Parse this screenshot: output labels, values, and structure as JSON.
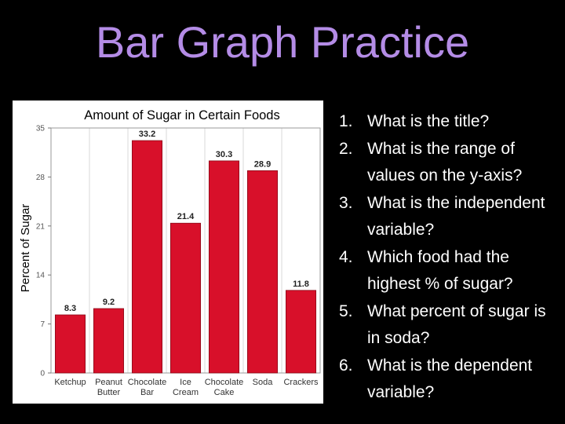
{
  "slide": {
    "title": "Bar Graph Practice"
  },
  "questions": [
    {
      "num": "1.",
      "text": "What is the title?"
    },
    {
      "num": "2.",
      "text": "What is the range of values on the y-axis?"
    },
    {
      "num": "3.",
      "text": "What is the independent variable?"
    },
    {
      "num": "4.",
      "text": "Which food had the highest % of sugar?"
    },
    {
      "num": "5.",
      "text": "What percent of sugar is in soda?"
    },
    {
      "num": "6.",
      "text": "What is the dependent variable?"
    }
  ],
  "chart_data": {
    "type": "bar",
    "title": "Amount of Sugar in Certain Foods",
    "ylabel": "Percent of Sugar",
    "xlabel": "",
    "categories": [
      "Ketchup",
      "Peanut Butter",
      "Chocolate Bar",
      "Ice Cream",
      "Chocolate Cake",
      "Soda",
      "Crackers"
    ],
    "category_lines": [
      [
        "Ketchup"
      ],
      [
        "Peanut",
        "Butter"
      ],
      [
        "Chocolate",
        "Bar"
      ],
      [
        "Ice",
        "Cream"
      ],
      [
        "Chocolate",
        "Cake"
      ],
      [
        "Soda"
      ],
      [
        "Crackers"
      ]
    ],
    "values": [
      8.3,
      9.2,
      33.2,
      21.4,
      30.3,
      28.9,
      11.8
    ],
    "data_labels": [
      "8.3",
      "9.2",
      "33.2",
      "21.4",
      "30.3",
      "28.9",
      "11.8"
    ],
    "yticks": [
      0,
      7,
      14,
      21,
      28,
      35
    ],
    "ylim": [
      0,
      35
    ],
    "grid": "vertical",
    "bar_color": "#d8102a"
  }
}
